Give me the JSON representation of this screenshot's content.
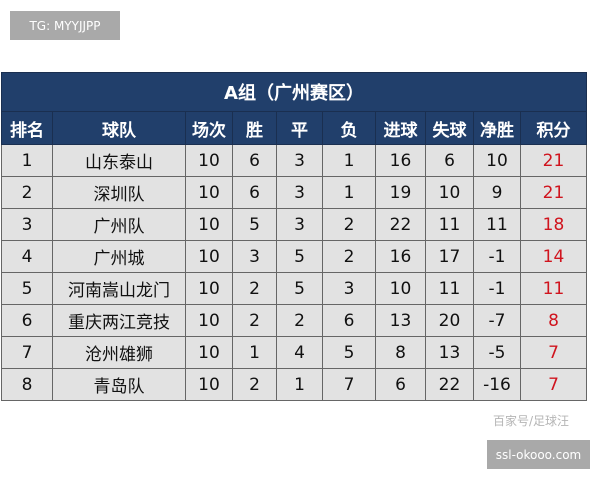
{
  "watermarks": {
    "top_left": "TG: MYYJJPP",
    "bottom_right": "ssl-okooo.com",
    "overlay": "百家号/足球汪"
  },
  "table": {
    "title": "A组（广州赛区）",
    "headers": [
      "排名",
      "球队",
      "场次",
      "胜",
      "平",
      "负",
      "进球",
      "失球",
      "净胜",
      "积分"
    ],
    "rows": [
      [
        "1",
        "山东泰山",
        "10",
        "6",
        "3",
        "1",
        "16",
        "6",
        "10",
        "21"
      ],
      [
        "2",
        "深圳队",
        "10",
        "6",
        "3",
        "1",
        "19",
        "10",
        "9",
        "21"
      ],
      [
        "3",
        "广州队",
        "10",
        "5",
        "3",
        "2",
        "22",
        "11",
        "11",
        "18"
      ],
      [
        "4",
        "广州城",
        "10",
        "3",
        "5",
        "2",
        "16",
        "17",
        "-1",
        "14"
      ],
      [
        "5",
        "河南嵩山龙门",
        "10",
        "2",
        "5",
        "3",
        "10",
        "11",
        "-1",
        "11"
      ],
      [
        "6",
        "重庆两江竞技",
        "10",
        "2",
        "2",
        "6",
        "13",
        "20",
        "-7",
        "8"
      ],
      [
        "7",
        "沧州雄狮",
        "10",
        "1",
        "4",
        "5",
        "8",
        "13",
        "-5",
        "7"
      ],
      [
        "8",
        "青岛队",
        "10",
        "2",
        "1",
        "7",
        "6",
        "22",
        "-16",
        "7"
      ]
    ]
  },
  "colors": {
    "header_bg": "#213f6b",
    "points": "#d0141e",
    "cell_bg": "#e2e2e2"
  }
}
